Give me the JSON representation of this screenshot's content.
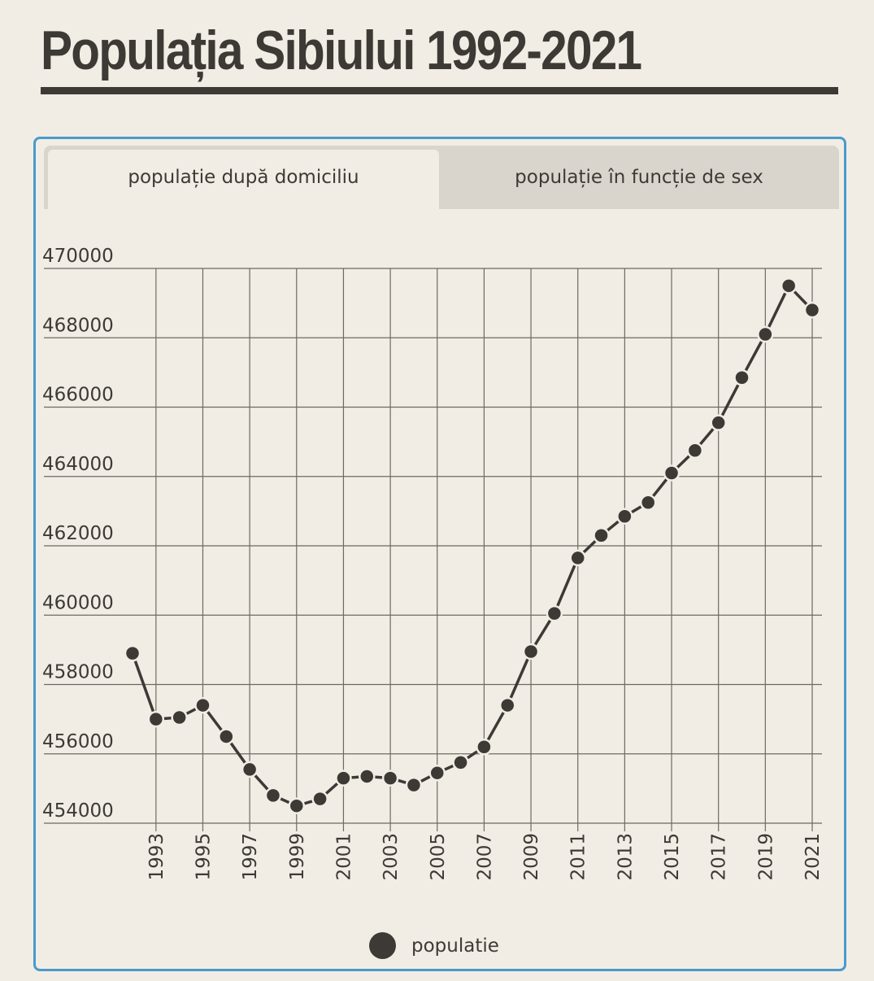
{
  "page": {
    "title": "Populația Sibiului 1992-2021"
  },
  "tabs": [
    {
      "label": "populație după domiciliu",
      "active": true
    },
    {
      "label": "populație în funcție de sex",
      "active": false
    }
  ],
  "colors": {
    "ink": "#3d3a35",
    "background": "#f1ede4",
    "card_border": "#4a9acb",
    "tab_inactive": "#d9d5cc"
  },
  "legend": {
    "items": [
      {
        "label": "populatie",
        "color": "#3d3a35"
      }
    ],
    "placement": "bottom-center"
  },
  "chart_data": {
    "type": "line",
    "title": "",
    "xlabel": "",
    "ylabel": "",
    "ylim": [
      454000,
      470000
    ],
    "xlim": [
      1992,
      2021
    ],
    "grid": true,
    "y_ticks": [
      454000,
      456000,
      458000,
      460000,
      462000,
      464000,
      466000,
      468000,
      470000
    ],
    "x_ticks": [
      1993,
      1995,
      1997,
      1999,
      2001,
      2003,
      2005,
      2007,
      2009,
      2011,
      2013,
      2015,
      2017,
      2019,
      2021
    ],
    "x": [
      1992,
      1993,
      1994,
      1995,
      1996,
      1997,
      1998,
      1999,
      2000,
      2001,
      2002,
      2003,
      2004,
      2005,
      2006,
      2007,
      2008,
      2009,
      2010,
      2011,
      2012,
      2013,
      2014,
      2015,
      2016,
      2017,
      2018,
      2019,
      2020,
      2021
    ],
    "series": [
      {
        "name": "populatie",
        "color": "#3d3a35",
        "values": [
          458900,
          457000,
          457050,
          457400,
          456500,
          455550,
          454800,
          454500,
          454700,
          455300,
          455350,
          455300,
          455100,
          455450,
          455750,
          456200,
          457400,
          458950,
          460050,
          461650,
          462300,
          462850,
          463250,
          464100,
          464750,
          465550,
          466850,
          468100,
          469500,
          468800
        ]
      }
    ]
  }
}
